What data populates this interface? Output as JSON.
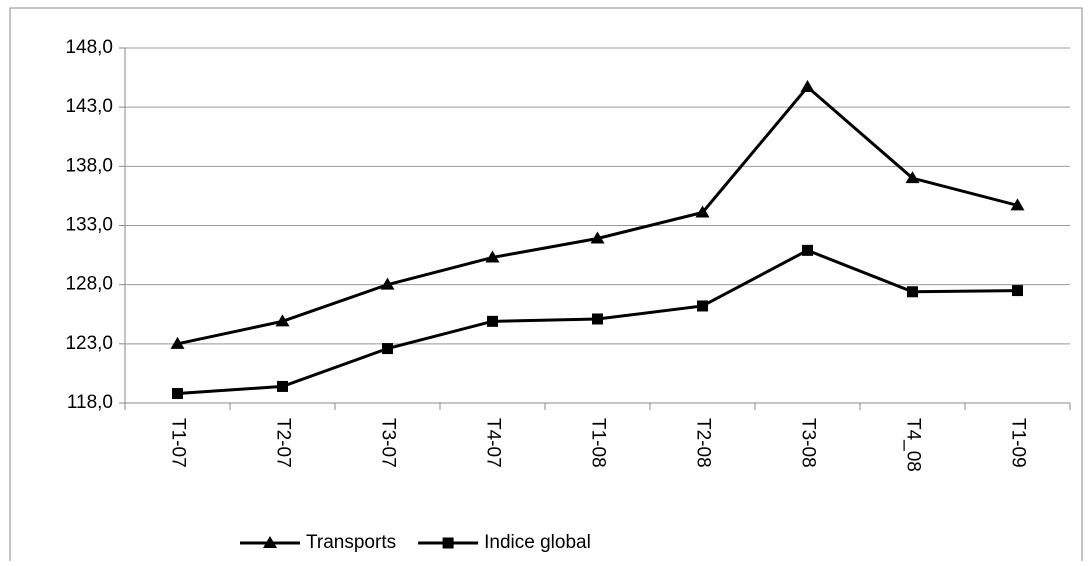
{
  "chart_data": {
    "type": "line",
    "categories": [
      "T1-07",
      "T2-07",
      "T3-07",
      "T4-07",
      "T1-08",
      "T2-08",
      "T3-08",
      "T4_08",
      "T1-09"
    ],
    "series": [
      {
        "name": "Transports",
        "color": "#000000",
        "marker": "triangle",
        "values": [
          123.0,
          124.9,
          128.0,
          130.3,
          131.9,
          134.1,
          144.7,
          137.0,
          134.7
        ]
      },
      {
        "name": "Indice global",
        "color": "#000000",
        "marker": "square",
        "values": [
          118.8,
          119.4,
          122.6,
          124.9,
          125.1,
          126.2,
          130.9,
          127.4,
          127.5
        ]
      }
    ],
    "ylim": [
      118,
      148
    ],
    "yticks": [
      {
        "value": 118,
        "label": "118,0"
      },
      {
        "value": 123,
        "label": "123,0"
      },
      {
        "value": 128,
        "label": "128,0"
      },
      {
        "value": 133,
        "label": "133,0"
      },
      {
        "value": 138,
        "label": "138,0"
      },
      {
        "value": 143,
        "label": "143,0"
      },
      {
        "value": 148,
        "label": "148,0"
      }
    ],
    "grid": true,
    "legend": "bottom"
  }
}
